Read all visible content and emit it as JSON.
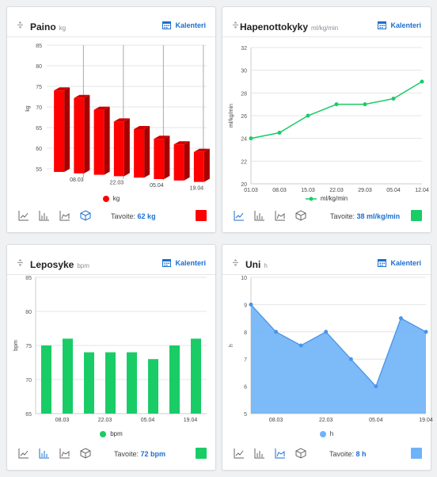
{
  "cards": {
    "paino": {
      "title": "Paino",
      "unit": "kg",
      "calendar_label": "Kalenteri",
      "target_label": "Tavoite:",
      "target_value": "62 kg",
      "color": "#ff0000",
      "active_type": "3d"
    },
    "hapenotto": {
      "title": "Hapenottokyky",
      "unit": "ml/kg/min",
      "calendar_label": "Kalenteri",
      "target_label": "Tavoite:",
      "target_value": "38 ml/kg/min",
      "color": "#19cc66",
      "active_type": "line"
    },
    "leposyke": {
      "title": "Leposyke",
      "unit": "bpm",
      "calendar_label": "Kalenteri",
      "target_label": "Tavoite:",
      "target_value": "72 bpm",
      "color": "#19cc66",
      "active_type": "bar"
    },
    "uni": {
      "title": "Uni",
      "unit": "h",
      "calendar_label": "Kalenteri",
      "target_label": "Tavoite:",
      "target_value": "8 h",
      "color": "#6fb3f7",
      "active_type": "area"
    }
  },
  "icons": [
    "drag-handle-icon",
    "calendar-icon",
    "line-chart-icon",
    "bar-chart-icon",
    "area-chart-icon",
    "3d-cube-icon"
  ],
  "chart_data": [
    {
      "id": "paino",
      "type": "bar",
      "style": "3d",
      "ylabel": "kg",
      "ylim": [
        55,
        85
      ],
      "yticks": [
        55,
        60,
        65,
        70,
        75,
        80,
        85
      ],
      "legend": "kg",
      "xticklabels": [
        "08.03",
        "22.03",
        "05.04",
        "19.04"
      ],
      "values": [
        74,
        72.5,
        70,
        67.5,
        66,
        64,
        63,
        61.5
      ]
    },
    {
      "id": "hapenotto",
      "type": "line",
      "ylabel": "ml/kg/min",
      "ylim": [
        20,
        32
      ],
      "yticks": [
        20,
        22,
        24,
        26,
        28,
        30,
        32
      ],
      "legend": "ml/kg/min",
      "x": [
        "01.03",
        "08.03",
        "15.03",
        "22.03",
        "29.03",
        "05.04",
        "12.04"
      ],
      "values": [
        24,
        24.5,
        26,
        27,
        27,
        27.5,
        29
      ]
    },
    {
      "id": "leposyke",
      "type": "bar",
      "ylabel": "bpm",
      "ylim": [
        65,
        85
      ],
      "yticks": [
        65,
        70,
        75,
        80,
        85
      ],
      "legend": "bpm",
      "xticklabels": [
        "08.03",
        "22.03",
        "05.04",
        "19.04"
      ],
      "values": [
        75,
        76,
        74,
        74,
        74,
        73,
        75,
        76
      ]
    },
    {
      "id": "uni",
      "type": "area",
      "ylabel": "h",
      "ylim": [
        5,
        10
      ],
      "yticks": [
        5,
        6,
        7,
        8,
        9,
        10
      ],
      "legend": "h",
      "xticklabels": [
        "08.03",
        "22.03",
        "05.04",
        "19.04"
      ],
      "values": [
        9,
        8,
        7.5,
        8,
        7,
        6,
        8.5,
        8
      ]
    }
  ]
}
